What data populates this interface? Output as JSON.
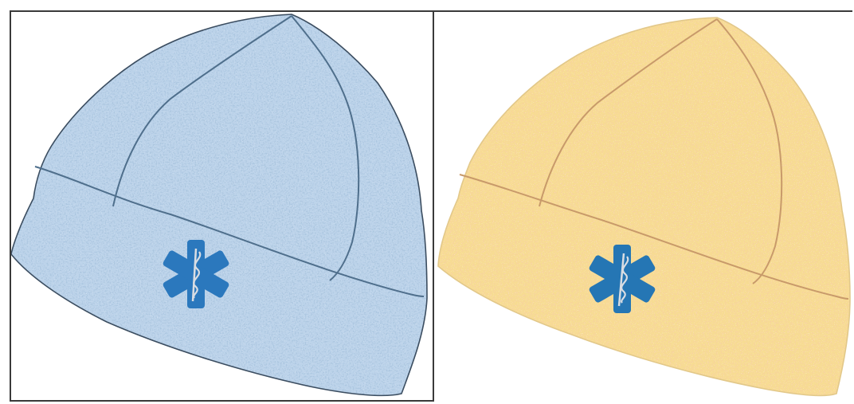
{
  "panels": [
    {
      "name": "blue-beanie",
      "colors": {
        "base": "#bcd3ea",
        "light": "#eef5fc",
        "mid": "#8fb3d6",
        "dark": "#5e86b0",
        "seam": "#4f6f8c",
        "outline": "#3b4d60"
      },
      "emblem": {
        "icon": "star-of-life-icon",
        "fill": "#2b78bd",
        "staff": "#d9dde3"
      }
    },
    {
      "name": "yellow-beanie",
      "colors": {
        "base": "#f7dc92",
        "light": "#fff5d6",
        "mid": "#f0c070",
        "dark": "#e3a058",
        "seam": "#c89a6a",
        "outline": "#e2c88a"
      },
      "emblem": {
        "icon": "star-of-life-icon",
        "fill": "#2576b4",
        "staff": "#d9dde3"
      }
    }
  ]
}
